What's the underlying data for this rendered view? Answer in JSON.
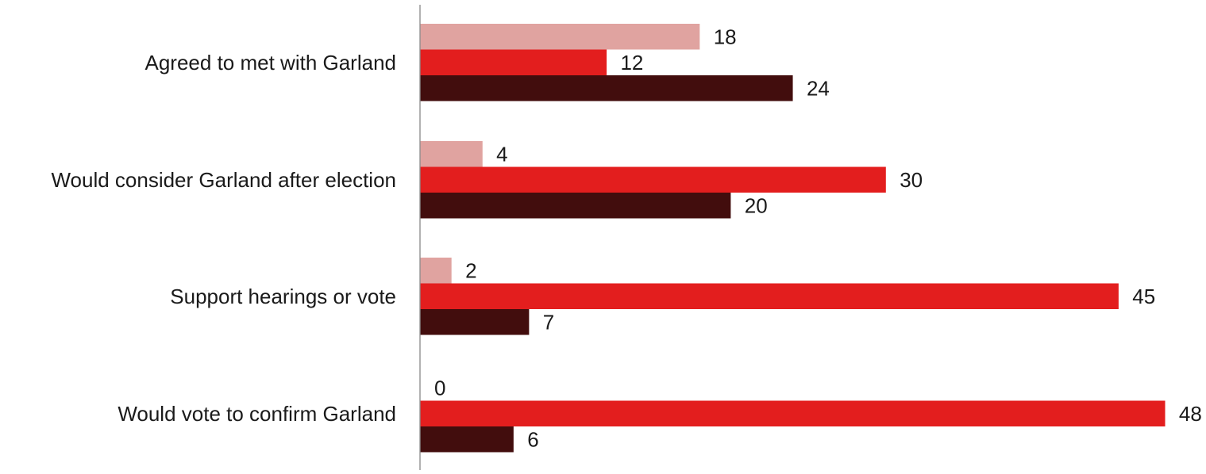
{
  "chart_data": {
    "type": "bar",
    "orientation": "horizontal",
    "title": "",
    "xlabel": "",
    "ylabel": "",
    "categories": [
      "Agreed to met with Garland",
      "Would consider Garland after election",
      "Support hearings or vote",
      "Would vote to confirm Garland"
    ],
    "series": [
      {
        "values": [
          18,
          4,
          2,
          0
        ],
        "color": "#e0a3a0"
      },
      {
        "values": [
          12,
          30,
          45,
          48
        ],
        "color": "#e31e1e"
      },
      {
        "values": [
          24,
          20,
          7,
          6
        ],
        "color": "#420d0d"
      }
    ],
    "xlim": [
      0,
      50
    ],
    "grid": false,
    "legend": "none",
    "data_labels": true
  }
}
